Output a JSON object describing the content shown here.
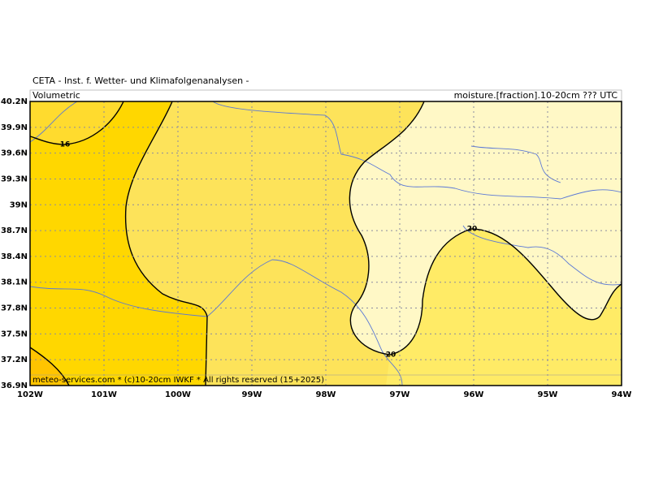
{
  "header": {
    "title": "CETA - Inst. f. Wetter- und Klimafolgenanalysen -",
    "left": "Volumetric",
    "right": "moisture.[fraction].10-20cm ??? UTC"
  },
  "footer": "meteo-services.com * (c)10-20cm IWKF * All rights reserved (15+2025)",
  "map": {
    "xlim": [
      -102,
      -94
    ],
    "ylim": [
      36.9,
      40.2
    ],
    "xticks": [
      {
        "value": -102,
        "label": "102W"
      },
      {
        "value": -101,
        "label": "101W"
      },
      {
        "value": -100,
        "label": "100W"
      },
      {
        "value": -99,
        "label": "99W"
      },
      {
        "value": -98,
        "label": "98W"
      },
      {
        "value": -97,
        "label": "97W"
      },
      {
        "value": -96,
        "label": "96W"
      },
      {
        "value": -95,
        "label": "95W"
      },
      {
        "value": -94,
        "label": "94W"
      }
    ],
    "yticks": [
      {
        "value": 36.9,
        "label": "36.9N"
      },
      {
        "value": 37.2,
        "label": "37.2N"
      },
      {
        "value": 37.5,
        "label": "37.5N"
      },
      {
        "value": 37.8,
        "label": "37.8N"
      },
      {
        "value": 38.1,
        "label": "38.1N"
      },
      {
        "value": 38.4,
        "label": "38.4N"
      },
      {
        "value": 38.7,
        "label": "38.7N"
      },
      {
        "value": 39,
        "label": "39N"
      },
      {
        "value": 39.3,
        "label": "39.3N"
      },
      {
        "value": 39.6,
        "label": "39.6N"
      },
      {
        "value": 39.9,
        "label": "39.9N"
      },
      {
        "value": 40.2,
        "label": "40.2N"
      }
    ],
    "contour_labels": [
      16,
      20,
      20
    ]
  }
}
